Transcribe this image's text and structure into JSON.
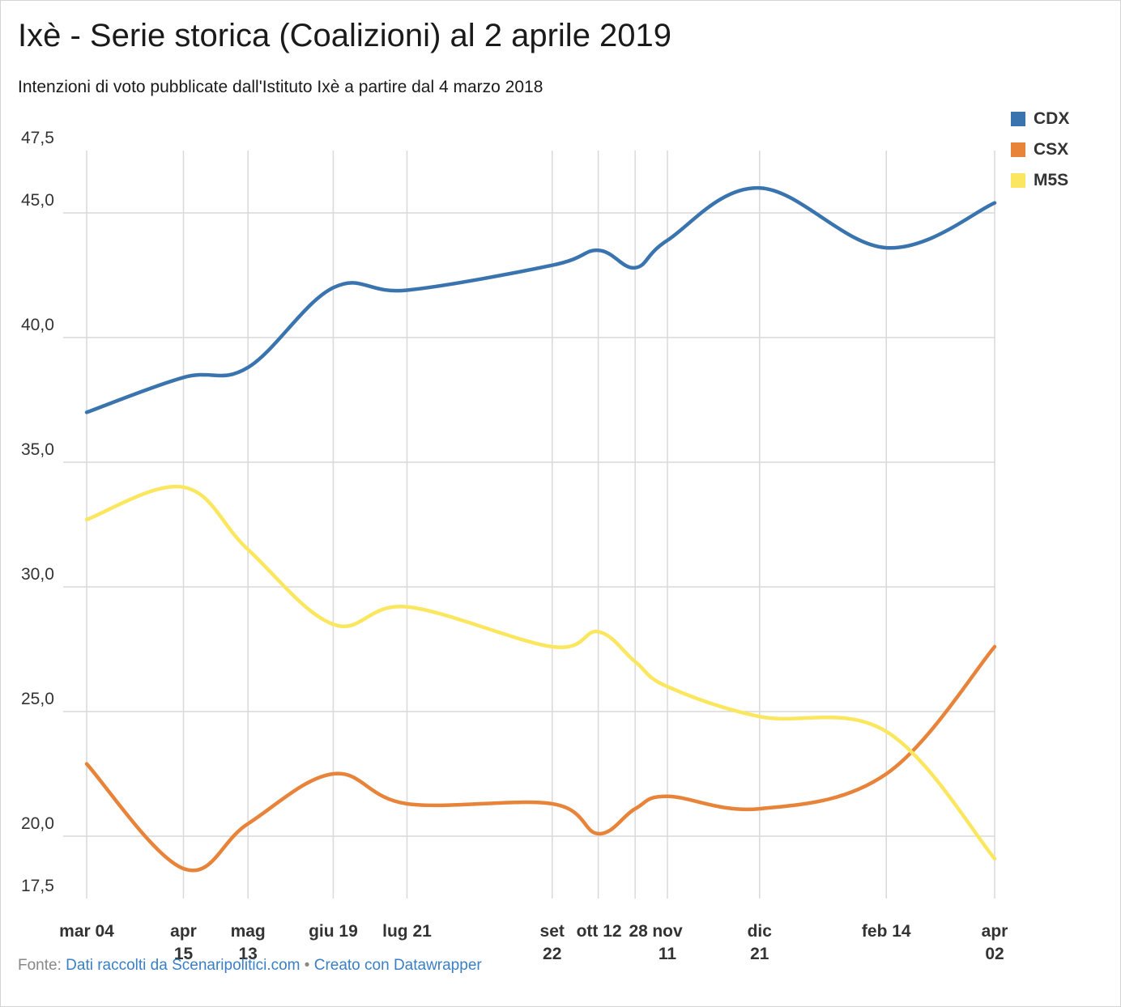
{
  "title": "Ixè - Serie storica (Coalizioni) al 2 aprile 2019",
  "subtitle": "Intenzioni di voto pubblicate dall'Istituto Ixè a partire dal 4 marzo 2018",
  "footer": {
    "source_label": "Fonte:",
    "source_link": "Dati raccolti da Scenaripolitici.com",
    "separator": "•",
    "credit_link": "Creato con Datawrapper"
  },
  "chart_data": {
    "type": "line",
    "title": "Ixè - Serie storica (Coalizioni) al 2 aprile 2019",
    "subtitle": "Intenzioni di voto pubblicate dall'Istituto Ixè a partire dal 4 marzo 2018",
    "xlabel": "",
    "ylabel": "",
    "ylim": [
      17.5,
      47.5
    ],
    "yticks": [
      "17,5",
      "20,0",
      "25,0",
      "30,0",
      "35,0",
      "40,0",
      "45,0",
      "47,5"
    ],
    "ytick_values": [
      17.5,
      20,
      25,
      30,
      35,
      40,
      45,
      47.5
    ],
    "grid": true,
    "legend": "top-right",
    "x": [
      "2018-03-04",
      "2018-04-15",
      "2018-05-13",
      "2018-06-19",
      "2018-07-21",
      "2018-09-22",
      "2018-10-12",
      "2018-10-28",
      "2018-11-11",
      "2018-12-21",
      "2019-02-14",
      "2019-04-02"
    ],
    "xtick_labels": [
      [
        "mar 04"
      ],
      [
        "apr",
        "15"
      ],
      [
        "mag",
        "13"
      ],
      [
        "giu 19"
      ],
      [
        "lug 21"
      ],
      [
        "set",
        "22"
      ],
      [
        "ott 12"
      ],
      [
        "28"
      ],
      [
        "nov",
        "11"
      ],
      [
        "dic",
        "21"
      ],
      [
        "feb 14"
      ],
      [
        "apr",
        "02"
      ]
    ],
    "series": [
      {
        "name": "CDX",
        "color": "#3a74ae",
        "values": [
          37.0,
          38.4,
          38.8,
          42.0,
          41.9,
          42.9,
          43.5,
          42.8,
          43.9,
          46.0,
          43.6,
          45.4
        ]
      },
      {
        "name": "CSX",
        "color": "#e8833a",
        "values": [
          22.9,
          18.7,
          20.5,
          22.5,
          21.3,
          21.3,
          20.1,
          21.1,
          21.6,
          21.1,
          22.5,
          27.6
        ]
      },
      {
        "name": "M5S",
        "color": "#fbe75f",
        "values": [
          32.7,
          34.0,
          31.5,
          28.5,
          29.2,
          27.6,
          28.2,
          27.0,
          26.0,
          24.8,
          24.2,
          19.1
        ]
      }
    ]
  }
}
